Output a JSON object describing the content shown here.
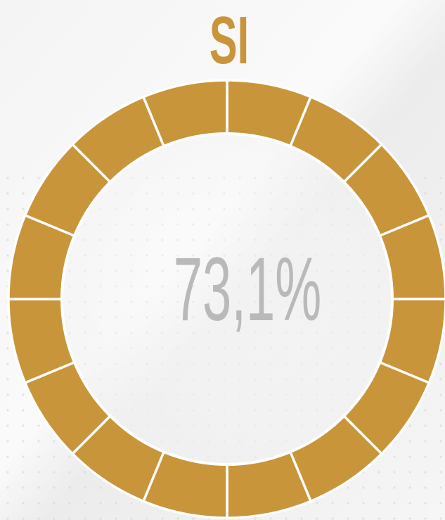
{
  "title": "SI",
  "center_label": "73,1%"
}
